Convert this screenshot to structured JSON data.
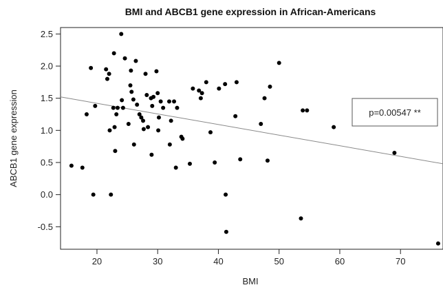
{
  "chart_data": {
    "type": "scatter",
    "title": "BMI and ABCB1 gene expression in African-Americans",
    "xlabel": "BMI",
    "ylabel": "ABCB1 gene expression",
    "xlim": [
      14,
      77
    ],
    "ylim": [
      -0.85,
      2.6
    ],
    "xticks": [
      20,
      30,
      40,
      50,
      60,
      70
    ],
    "yticks": [
      -0.5,
      0.0,
      0.5,
      1.0,
      1.5,
      2.0,
      2.5
    ],
    "ytick_labels": [
      "-0.5",
      "0.0",
      "0.5",
      "1.0",
      "1.5",
      "2.0",
      "2.5"
    ],
    "grid": false,
    "annotation": "p=0.00547 **",
    "annotation_placement": "right",
    "regression_line": {
      "x": [
        14,
        77
      ],
      "y": [
        1.52,
        0.48
      ]
    },
    "points": [
      [
        15.8,
        0.45
      ],
      [
        17.6,
        0.42
      ],
      [
        18.3,
        1.25
      ],
      [
        19.0,
        1.97
      ],
      [
        19.4,
        0.0
      ],
      [
        19.7,
        1.38
      ],
      [
        21.5,
        1.95
      ],
      [
        21.7,
        1.8
      ],
      [
        22.0,
        1.88
      ],
      [
        22.1,
        1.0
      ],
      [
        22.3,
        0.0
      ],
      [
        22.7,
        1.35
      ],
      [
        22.8,
        2.2
      ],
      [
        22.9,
        1.05
      ],
      [
        23.0,
        0.68
      ],
      [
        23.2,
        1.25
      ],
      [
        23.4,
        1.35
      ],
      [
        24.0,
        2.5
      ],
      [
        24.1,
        1.47
      ],
      [
        24.3,
        1.35
      ],
      [
        24.6,
        2.12
      ],
      [
        25.2,
        1.1
      ],
      [
        25.5,
        1.7
      ],
      [
        25.6,
        1.93
      ],
      [
        25.7,
        1.6
      ],
      [
        26.0,
        1.48
      ],
      [
        26.1,
        0.78
      ],
      [
        26.4,
        2.08
      ],
      [
        26.6,
        1.4
      ],
      [
        27.0,
        1.25
      ],
      [
        27.3,
        1.2
      ],
      [
        27.6,
        1.15
      ],
      [
        27.7,
        1.02
      ],
      [
        28.0,
        1.88
      ],
      [
        28.2,
        1.55
      ],
      [
        28.4,
        1.05
      ],
      [
        28.9,
        1.5
      ],
      [
        29.0,
        0.62
      ],
      [
        29.1,
        1.38
      ],
      [
        29.3,
        1.52
      ],
      [
        29.8,
        1.92
      ],
      [
        30.0,
        1.58
      ],
      [
        30.1,
        1.0
      ],
      [
        30.2,
        1.2
      ],
      [
        30.5,
        1.45
      ],
      [
        30.9,
        1.35
      ],
      [
        31.9,
        1.45
      ],
      [
        32.0,
        0.78
      ],
      [
        32.2,
        1.15
      ],
      [
        32.7,
        1.45
      ],
      [
        33.0,
        0.42
      ],
      [
        33.2,
        1.35
      ],
      [
        33.9,
        0.9
      ],
      [
        34.1,
        0.87
      ],
      [
        35.3,
        0.48
      ],
      [
        35.8,
        1.65
      ],
      [
        36.8,
        1.62
      ],
      [
        37.1,
        1.5
      ],
      [
        37.3,
        1.58
      ],
      [
        38.0,
        1.75
      ],
      [
        38.7,
        0.97
      ],
      [
        39.4,
        0.5
      ],
      [
        40.1,
        1.65
      ],
      [
        41.1,
        1.72
      ],
      [
        41.2,
        0.0
      ],
      [
        41.3,
        -0.58
      ],
      [
        42.8,
        1.22
      ],
      [
        43.0,
        1.75
      ],
      [
        43.6,
        0.55
      ],
      [
        47.0,
        1.1
      ],
      [
        47.6,
        1.5
      ],
      [
        48.1,
        0.53
      ],
      [
        48.5,
        1.68
      ],
      [
        50.0,
        2.05
      ],
      [
        53.6,
        -0.37
      ],
      [
        53.9,
        1.31
      ],
      [
        54.6,
        1.31
      ],
      [
        59.0,
        1.05
      ],
      [
        69.0,
        0.65
      ],
      [
        76.2,
        -0.76
      ]
    ]
  }
}
